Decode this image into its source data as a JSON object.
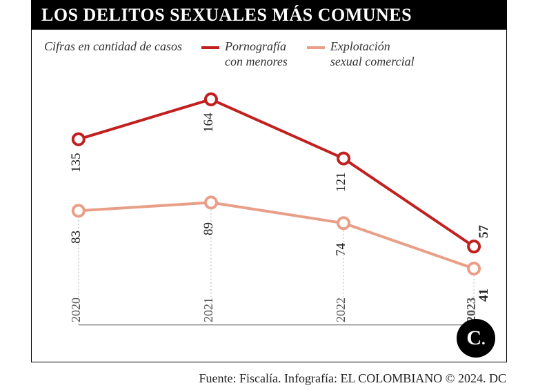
{
  "title": "LOS DELITOS SEXUALES MÁS COMUNES",
  "title_fontsize": 26,
  "subtitle": "Cifras en cantidad de casos",
  "subtitle_fontsize": 18,
  "legend_fontsize": 18,
  "source": "Fuente: Fiscalía. Infografía: EL COLOMBIANO © 2024. DC",
  "source_fontsize": 18,
  "logo_text": "C",
  "chart": {
    "type": "line",
    "years": [
      "2020",
      "2021",
      "2022",
      "2023"
    ],
    "year_fontsize": 18,
    "value_fontsize": 19,
    "ylim": [
      0,
      180
    ],
    "x_positions_pct": [
      6,
      36.5,
      67,
      97
    ],
    "baseline_pct": 96,
    "series": [
      {
        "id": "pornografia",
        "label": "Pornografía\ncon menores",
        "color": "#c21f1f",
        "line_width": 4,
        "marker_stroke": 4,
        "marker_radius": 8,
        "marker_fill": "#ffffff",
        "values": [
          135,
          164,
          121,
          57
        ],
        "value_label_color": "#222222"
      },
      {
        "id": "explotacion",
        "label": "Explotación\nsexual comercial",
        "color": "#e99f87",
        "line_width": 4,
        "marker_stroke": 4,
        "marker_radius": 8,
        "marker_fill": "#ffffff",
        "values": [
          83,
          89,
          74,
          41
        ],
        "value_label_color": "#222222"
      }
    ],
    "gridline_color": "#bfbfbf",
    "gridline_dash": "2,3",
    "background_color": "#ffffff"
  },
  "last_year_bold": true
}
